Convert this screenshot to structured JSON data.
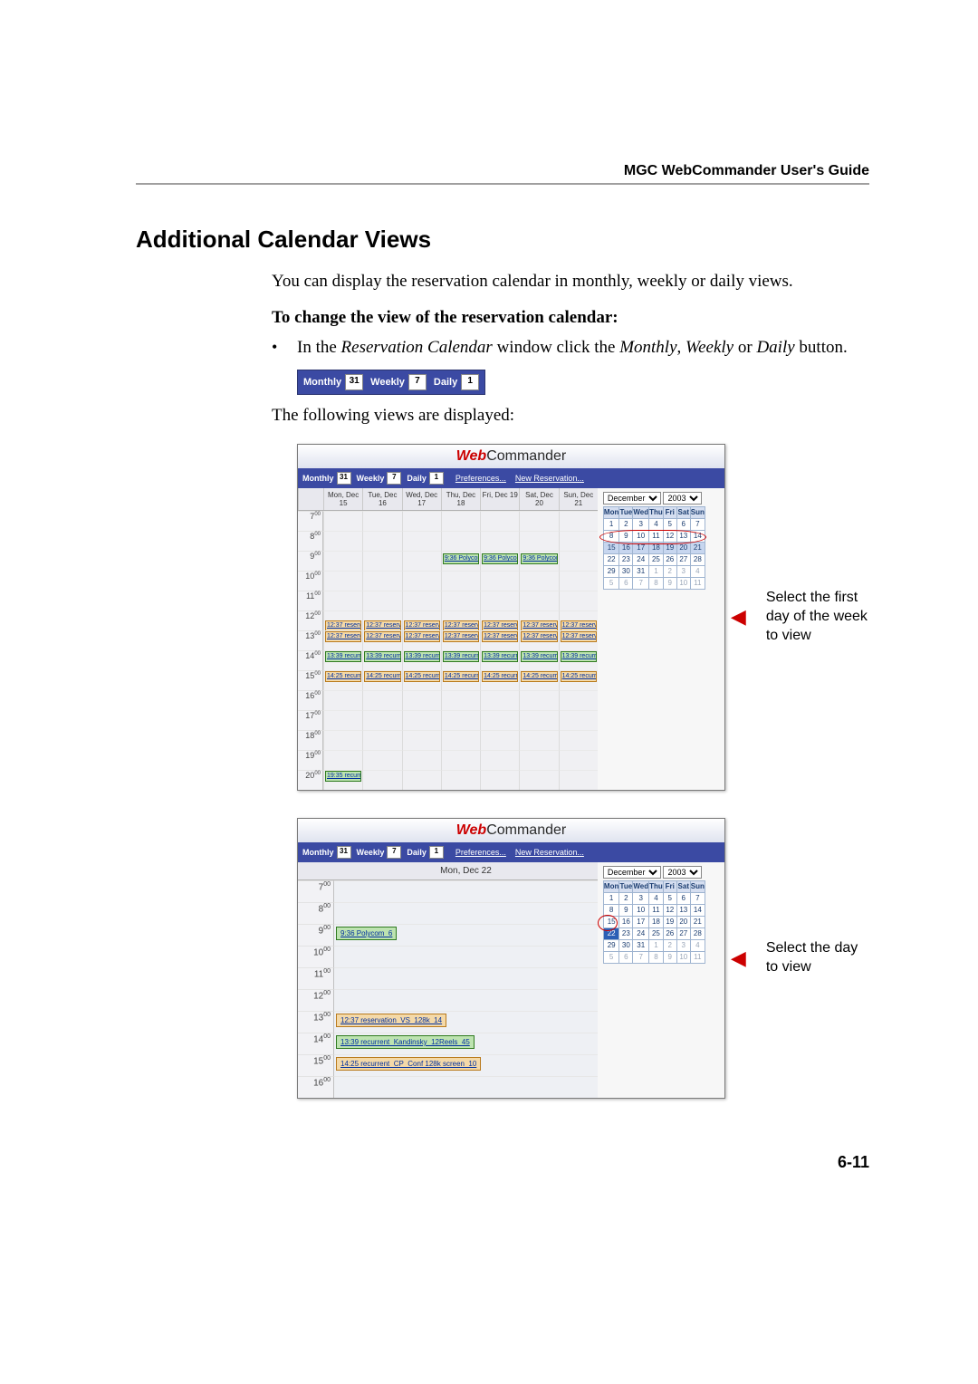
{
  "header": {
    "guide": "MGC WebCommander User's Guide"
  },
  "section": {
    "title": "Additional Calendar Views"
  },
  "intro": "You can display the reservation calendar in monthly, weekly or daily views.",
  "subhead": "To change the view of the reservation calendar:",
  "bullet": {
    "pre": "In the ",
    "win": "Reservation Calendar",
    "mid": " window click the ",
    "m": "Monthly",
    "sep1": ", ",
    "w": "Weekly",
    "sep2": " or ",
    "d": "Daily",
    "post": " button."
  },
  "toolbar": {
    "monthly": "Monthly",
    "monthly_n": "31",
    "weekly": "Weekly",
    "weekly_n": "7",
    "daily": "Daily",
    "daily_n": "1"
  },
  "after_tb": "The following views are displayed:",
  "brand": {
    "red": "Web",
    "blk": "Commander"
  },
  "menubar": {
    "prefs": "Preferences...",
    "new": "New Reservation..."
  },
  "weekly_view": {
    "days": [
      "Mon, Dec 15",
      "Tue, Dec 16",
      "Wed, Dec 17",
      "Thu, Dec 18",
      "Fri, Dec 19",
      "Sat, Dec 20",
      "Sun, Dec 21"
    ],
    "hours": [
      "7:00",
      "8:00",
      "9:00",
      "10:00",
      "11:00",
      "12:00",
      "13:00",
      "14:00",
      "15:00",
      "16:00",
      "17:00",
      "18:00",
      "19:00",
      "20:00"
    ],
    "mini": {
      "month_opt": "December",
      "year_opt": "2003",
      "dow": [
        "Mon",
        "Tue",
        "Wed",
        "Thu",
        "Fri",
        "Sat",
        "Sun"
      ],
      "rows": [
        [
          "1",
          "2",
          "3",
          "4",
          "5",
          "6",
          "7"
        ],
        [
          "8",
          "9",
          "10",
          "11",
          "12",
          "13",
          "14"
        ],
        [
          "15",
          "16",
          "17",
          "18",
          "19",
          "20",
          "21"
        ],
        [
          "22",
          "23",
          "24",
          "25",
          "26",
          "27",
          "28"
        ],
        [
          "29",
          "30",
          "31",
          "1",
          "2",
          "3",
          "4"
        ],
        [
          "5",
          "6",
          "7",
          "8",
          "9",
          "10",
          "11"
        ]
      ],
      "sel_row": 2
    },
    "annot": "Select the first day of the week to view"
  },
  "daily_view": {
    "day_label": "Mon, Dec 22",
    "hours": [
      "7:00",
      "8:00",
      "9:00",
      "10:00",
      "11:00",
      "12:00",
      "13:00",
      "14:00",
      "15:00",
      "16:00"
    ],
    "events": [
      {
        "hour": "9:00",
        "text": "9:36 Polycom_6",
        "cls": "ev-green"
      },
      {
        "hour": "13:00",
        "text": "12:37 reservation_VS_128k_14",
        "cls": "ev-orange"
      },
      {
        "hour": "14:00",
        "text": "13:39 recurrent_Kandinsky_12Reels_45",
        "cls": "ev-green"
      },
      {
        "hour": "15:00",
        "text": "14:25 recurrent_CP_Conf 128k screen_10",
        "cls": "ev-orange"
      }
    ],
    "mini": {
      "month_opt": "December",
      "year_opt": "2003",
      "dow": [
        "Mon",
        "Tue",
        "Wed",
        "Thu",
        "Fri",
        "Sat",
        "Sun"
      ],
      "rows": [
        [
          "1",
          "2",
          "3",
          "4",
          "5",
          "6",
          "7"
        ],
        [
          "8",
          "9",
          "10",
          "11",
          "12",
          "13",
          "14"
        ],
        [
          "15",
          "16",
          "17",
          "18",
          "19",
          "20",
          "21"
        ],
        [
          "22",
          "23",
          "24",
          "25",
          "26",
          "27",
          "28"
        ],
        [
          "29",
          "30",
          "31",
          "1",
          "2",
          "3",
          "4"
        ],
        [
          "5",
          "6",
          "7",
          "8",
          "9",
          "10",
          "11"
        ]
      ],
      "sel_cell": [
        3,
        0
      ]
    },
    "annot": "Select the day to view"
  },
  "pagenum": "6-11"
}
